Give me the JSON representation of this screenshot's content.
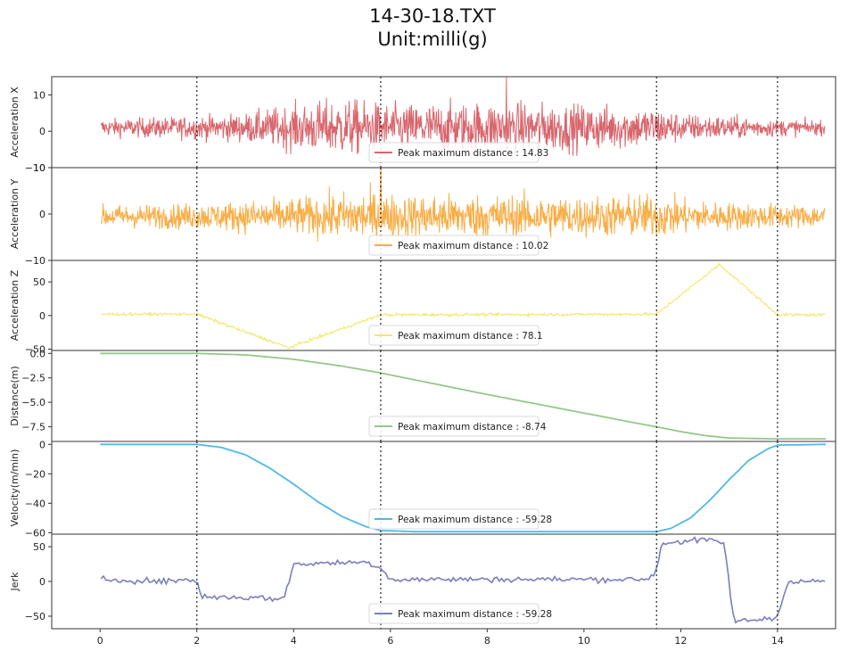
{
  "figure": {
    "title": "14-30-18.TXT",
    "subtitle": "Unit:milli(g)"
  },
  "chart_data": {
    "type": "line",
    "shared_x": {
      "range": [
        -1,
        15.2
      ],
      "ticks": [
        0,
        2,
        4,
        6,
        8,
        10,
        12,
        14
      ],
      "tick_labels": [
        "0",
        "2",
        "4",
        "6",
        "8",
        "10",
        "12",
        "14"
      ]
    },
    "vlines": [
      2.0,
      5.8,
      11.5,
      14.0
    ],
    "grid": false,
    "legend_position": "bottom-center",
    "panels": [
      {
        "id": "acc-x",
        "ylabel": "Acceleration X",
        "ylim": [
          -10,
          15
        ],
        "yticks": [
          -10,
          0,
          10
        ],
        "color": "#d9656c",
        "kind": "noise",
        "legend": "Peak maximum distance : 14.83",
        "envelope": [
          [
            0,
            3
          ],
          [
            2,
            4
          ],
          [
            3,
            5
          ],
          [
            4,
            8
          ],
          [
            5,
            10
          ],
          [
            6,
            8
          ],
          [
            8,
            9
          ],
          [
            10,
            8
          ],
          [
            11.5,
            7
          ],
          [
            12,
            5
          ],
          [
            14,
            3
          ],
          [
            15,
            2.5
          ]
        ],
        "offset": 1,
        "peak": [
          8.4,
          14.83
        ]
      },
      {
        "id": "acc-y",
        "ylabel": "Acceleration Y",
        "ylim": [
          -10,
          10
        ],
        "yticks": [
          -10,
          0,
          10
        ],
        "color": "#f8ad45",
        "kind": "noise",
        "legend": "Peak maximum distance : 10.02",
        "envelope": [
          [
            0,
            3
          ],
          [
            2,
            3.5
          ],
          [
            4,
            5
          ],
          [
            5.5,
            7
          ],
          [
            6,
            6
          ],
          [
            8,
            6
          ],
          [
            10,
            5.5
          ],
          [
            11.5,
            6
          ],
          [
            12.5,
            4
          ],
          [
            15,
            3
          ]
        ],
        "offset": -0.5,
        "peak": [
          5.8,
          10.02
        ]
      },
      {
        "id": "acc-z",
        "ylabel": "Acceleration Z",
        "ylim": [
          -52,
          82
        ],
        "yticks": [
          -50,
          0,
          50
        ],
        "color": "#f3e66b",
        "kind": "trend-noise",
        "legend": "Peak maximum distance : 78.1",
        "trend": [
          [
            0,
            2
          ],
          [
            2,
            2
          ],
          [
            3.9,
            -48
          ],
          [
            5.8,
            1
          ],
          [
            11.5,
            2
          ],
          [
            12.8,
            76
          ],
          [
            14,
            1
          ],
          [
            15,
            1
          ]
        ],
        "noise": 1.5
      },
      {
        "id": "distance",
        "ylabel": "Distance(m)",
        "ylim": [
          -9.0,
          0.3
        ],
        "yticks": [
          0.0,
          -2.5,
          -5.0,
          -7.5
        ],
        "ytick_labels": [
          "0.0",
          "−2.5",
          "−5.0",
          "−7.5"
        ],
        "color": "#93c889",
        "kind": "curve",
        "legend": "Peak maximum distance : -8.74",
        "points": [
          [
            0,
            0
          ],
          [
            2,
            0
          ],
          [
            3,
            -0.15
          ],
          [
            4,
            -0.6
          ],
          [
            5,
            -1.3
          ],
          [
            5.8,
            -2.0
          ],
          [
            7,
            -3.2
          ],
          [
            8,
            -4.2
          ],
          [
            9,
            -5.15
          ],
          [
            10,
            -6.1
          ],
          [
            11,
            -7.05
          ],
          [
            11.5,
            -7.5
          ],
          [
            12,
            -8.0
          ],
          [
            12.5,
            -8.4
          ],
          [
            13,
            -8.65
          ],
          [
            14,
            -8.74
          ],
          [
            15,
            -8.74
          ]
        ]
      },
      {
        "id": "velocity",
        "ylabel": "Velocity(m/min)",
        "ylim": [
          -61,
          2
        ],
        "yticks": [
          0,
          -20,
          -40,
          -60
        ],
        "ytick_labels": [
          "0",
          "−20",
          "−40",
          "−60"
        ],
        "color": "#4eb9e8",
        "kind": "curve",
        "legend": "Peak maximum distance : -59.28",
        "points": [
          [
            0,
            0
          ],
          [
            2,
            0
          ],
          [
            2.5,
            -2
          ],
          [
            3,
            -7
          ],
          [
            3.5,
            -16
          ],
          [
            4,
            -27
          ],
          [
            4.5,
            -39
          ],
          [
            5,
            -49
          ],
          [
            5.5,
            -56
          ],
          [
            5.8,
            -58.5
          ],
          [
            6.5,
            -59.28
          ],
          [
            11.5,
            -59.28
          ],
          [
            11.8,
            -57
          ],
          [
            12.2,
            -50
          ],
          [
            12.6,
            -38
          ],
          [
            13,
            -24
          ],
          [
            13.4,
            -11
          ],
          [
            13.8,
            -3
          ],
          [
            14,
            -0.5
          ],
          [
            15,
            0
          ]
        ]
      },
      {
        "id": "jerk",
        "ylabel": "Jerk",
        "ylim": [
          -68,
          68
        ],
        "yticks": [
          -50,
          0,
          50
        ],
        "ytick_labels": [
          "−50",
          "0",
          "50"
        ],
        "color": "#7a7ebe",
        "kind": "trend-noise",
        "legend": "Peak maximum distance : -59.28",
        "trend": [
          [
            0,
            3
          ],
          [
            1.4,
            0
          ],
          [
            1.8,
            3
          ],
          [
            2,
            0
          ],
          [
            2.1,
            -22
          ],
          [
            3,
            -23
          ],
          [
            3.8,
            -25
          ],
          [
            4.0,
            25
          ],
          [
            5.5,
            28
          ],
          [
            5.8,
            20
          ],
          [
            6.0,
            3
          ],
          [
            11.3,
            3
          ],
          [
            11.5,
            15
          ],
          [
            11.6,
            55
          ],
          [
            12.5,
            60
          ],
          [
            12.9,
            55
          ],
          [
            13.1,
            -58
          ],
          [
            14,
            -52
          ],
          [
            14.2,
            0
          ],
          [
            15,
            0
          ]
        ],
        "noise": 3
      }
    ]
  }
}
